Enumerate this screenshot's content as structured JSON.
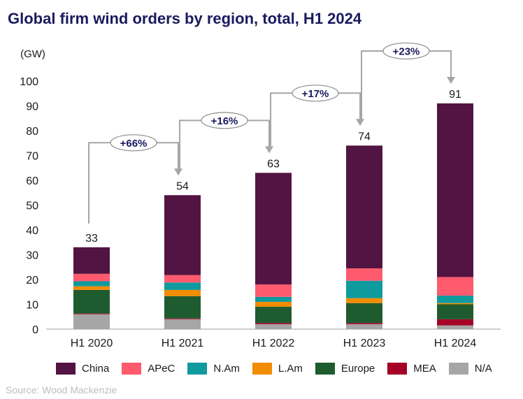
{
  "chart_data": {
    "type": "bar",
    "stacked": true,
    "title": "Global firm wind orders by region, total, H1 2024",
    "ylabel": "(GW)",
    "xlabel": "",
    "ylim": [
      0,
      100
    ],
    "yticks": [
      0,
      10,
      20,
      30,
      40,
      50,
      60,
      70,
      80,
      90,
      100
    ],
    "categories": [
      "H1 2020",
      "H1 2021",
      "H1 2022",
      "H1 2023",
      "H1 2024"
    ],
    "totals": [
      "33",
      "54",
      "63",
      "74",
      "91"
    ],
    "series": [
      {
        "name": "N/A",
        "color": "#a6a6a6",
        "values": [
          6,
          4,
          2,
          2,
          1.5
        ]
      },
      {
        "name": "MEA",
        "color": "#a50026",
        "values": [
          0.3,
          0.3,
          0.5,
          0.5,
          2.5
        ]
      },
      {
        "name": "Europe",
        "color": "#1e5b2f",
        "values": [
          9.5,
          9,
          6.5,
          8,
          6
        ]
      },
      {
        "name": "L.Am",
        "color": "#f28c00",
        "values": [
          1.5,
          2.5,
          2,
          2,
          0.5
        ]
      },
      {
        "name": "N.Am",
        "color": "#0f9a9e",
        "values": [
          2,
          3,
          2,
          7,
          3
        ]
      },
      {
        "name": "APeC",
        "color": "#ff5a6e",
        "values": [
          3,
          3,
          5,
          5,
          7.5
        ]
      },
      {
        "name": "China",
        "color": "#521442",
        "values": [
          10.7,
          32.2,
          45,
          49.5,
          70
        ]
      }
    ],
    "growth_annotations": [
      {
        "label": "+66%",
        "from": "H1 2020",
        "to": "H1 2021"
      },
      {
        "label": "+16%",
        "from": "H1 2021",
        "to": "H1 2022"
      },
      {
        "label": "+17%",
        "from": "H1 2022",
        "to": "H1 2023"
      },
      {
        "label": "+23%",
        "from": "H1 2023",
        "to": "H1 2024"
      }
    ],
    "legend_order": [
      "China",
      "APeC",
      "N.Am",
      "L.Am",
      "Europe",
      "MEA",
      "N/A"
    ],
    "legend_position": "bottom",
    "grid": false
  },
  "source": "Source: Wood Mackenzie"
}
